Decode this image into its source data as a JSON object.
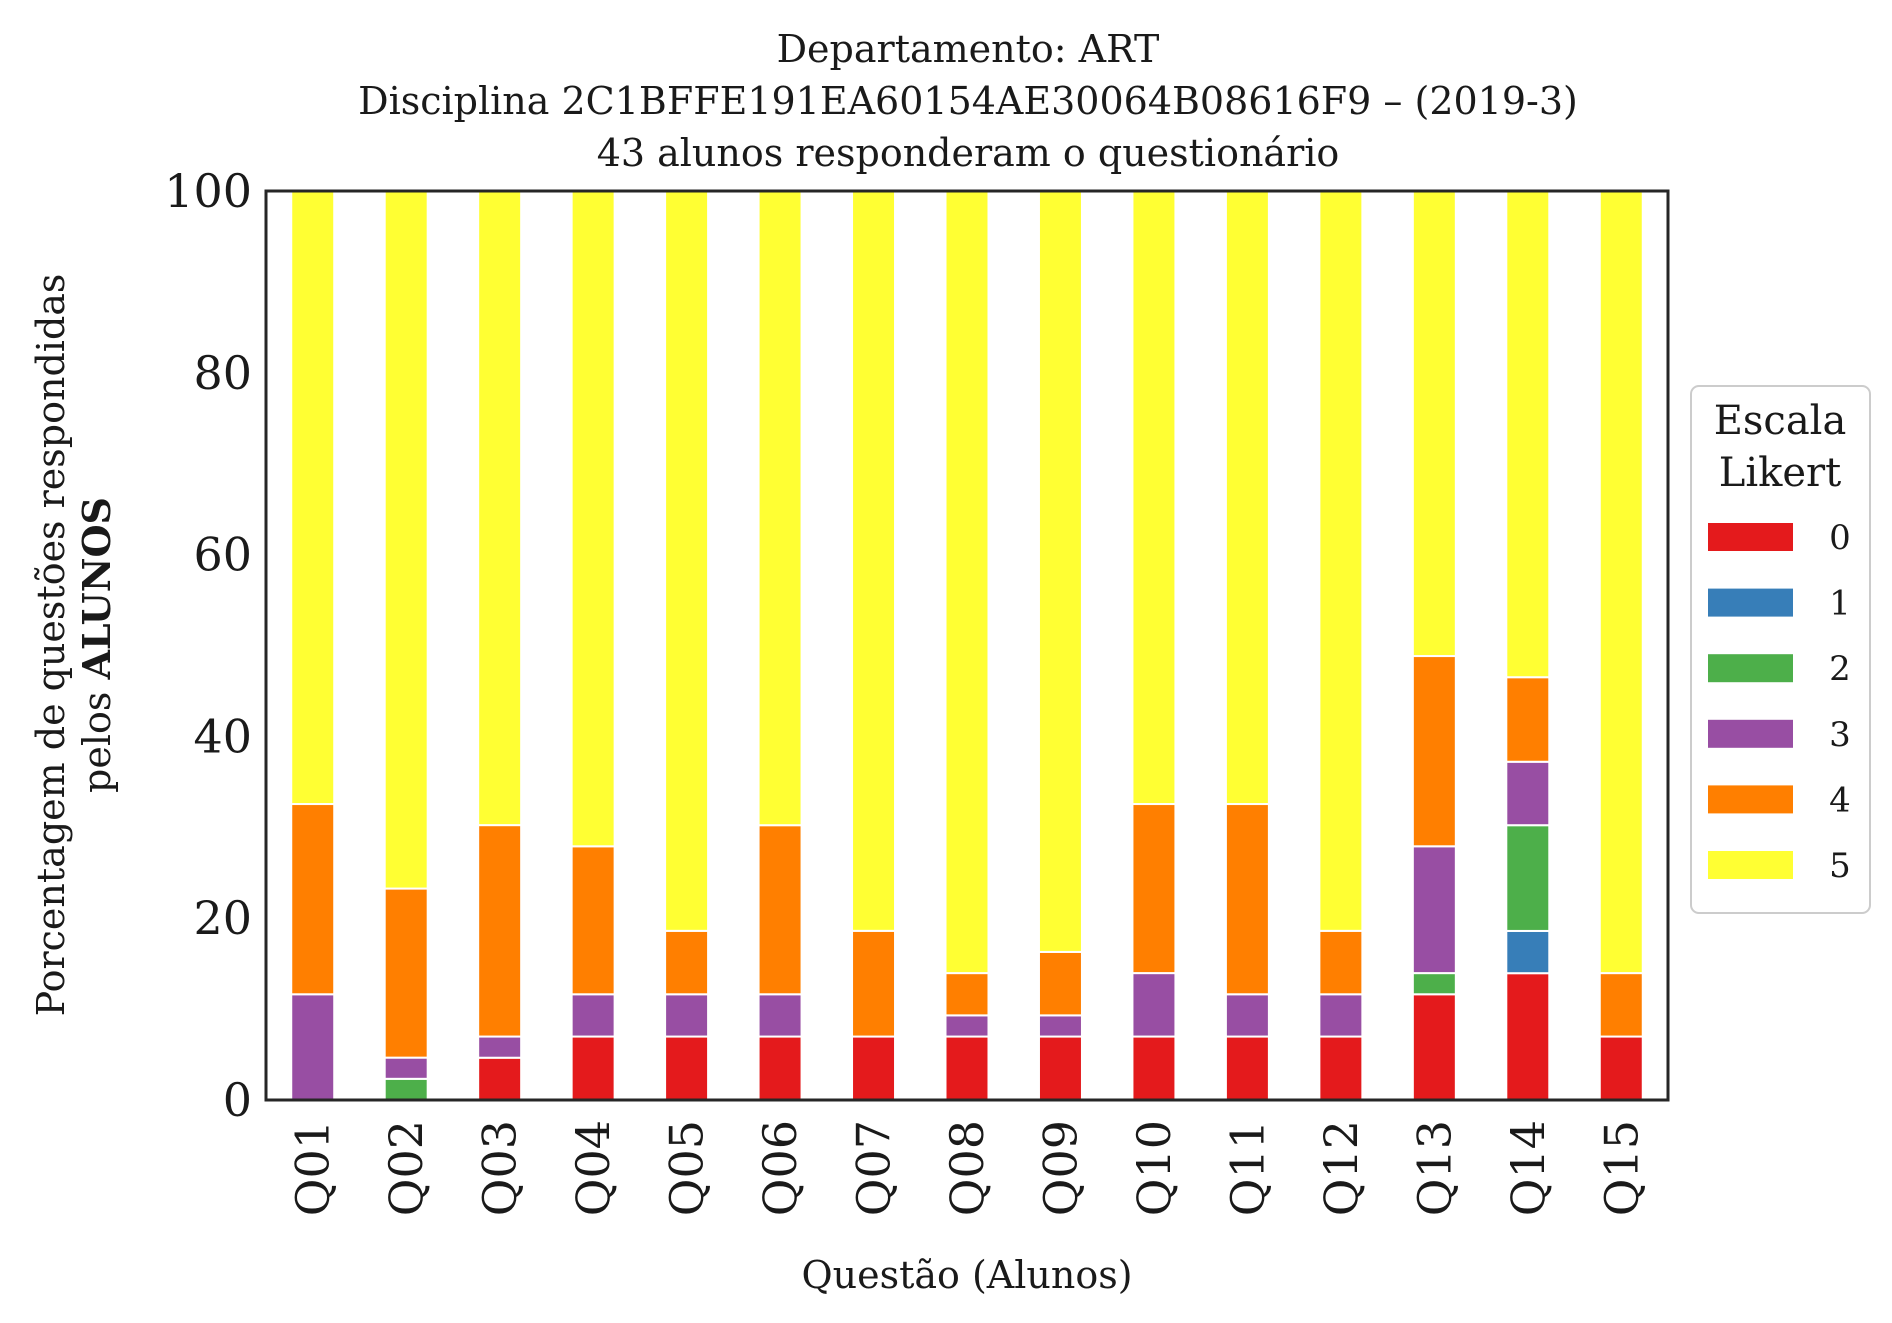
{
  "chart_data": {
    "type": "bar",
    "stacked": true,
    "title_lines": [
      "Departamento: ART",
      "Disciplina 2C1BFFE191EA60154AE30064B08616F9 – (2019-3)",
      "43 alunos responderam o questionário"
    ],
    "xlabel": "Questão (Alunos)",
    "ylabel_line1": "Porcentagem de questões respondidas",
    "ylabel_line2_prefix": "pelos ",
    "ylabel_line2_bold": "ALUNOS",
    "ylim": [
      0,
      100
    ],
    "yticks": [
      0,
      20,
      40,
      60,
      80,
      100
    ],
    "grid": false,
    "legend": {
      "title_lines": [
        "Escala",
        "Likert"
      ],
      "placement": "center-right-outside"
    },
    "categories": [
      "Q01",
      "Q02",
      "Q03",
      "Q04",
      "Q05",
      "Q06",
      "Q07",
      "Q08",
      "Q09",
      "Q10",
      "Q11",
      "Q12",
      "Q13",
      "Q14",
      "Q15"
    ],
    "series": [
      {
        "name": "0",
        "color": "#e41a1c",
        "values": [
          0,
          0,
          4.65,
          6.98,
          6.98,
          6.98,
          6.98,
          6.98,
          6.98,
          6.98,
          6.98,
          6.98,
          11.63,
          13.95,
          6.98
        ]
      },
      {
        "name": "1",
        "color": "#377eb8",
        "values": [
          0,
          0,
          0,
          0,
          0,
          0,
          0,
          0,
          0,
          0,
          0,
          0,
          0,
          4.65,
          0
        ]
      },
      {
        "name": "2",
        "color": "#4daf4a",
        "values": [
          0,
          2.33,
          0,
          0,
          0,
          0,
          0,
          0,
          0,
          0,
          0,
          0,
          2.33,
          11.63,
          0
        ]
      },
      {
        "name": "3",
        "color": "#984ea3",
        "values": [
          11.63,
          2.33,
          2.33,
          4.65,
          4.65,
          4.65,
          0,
          2.33,
          2.33,
          6.98,
          4.65,
          4.65,
          13.95,
          6.98,
          0
        ]
      },
      {
        "name": "4",
        "color": "#ff7f00",
        "values": [
          20.93,
          18.6,
          23.26,
          16.28,
          6.98,
          18.6,
          11.63,
          4.65,
          6.98,
          18.6,
          20.93,
          6.98,
          20.93,
          9.3,
          6.98
        ]
      },
      {
        "name": "5",
        "color": "#ffff33",
        "values": [
          67.44,
          76.74,
          69.77,
          72.09,
          81.4,
          69.77,
          81.4,
          86.05,
          83.72,
          67.44,
          67.44,
          81.4,
          51.16,
          53.49,
          86.05
        ]
      }
    ]
  }
}
